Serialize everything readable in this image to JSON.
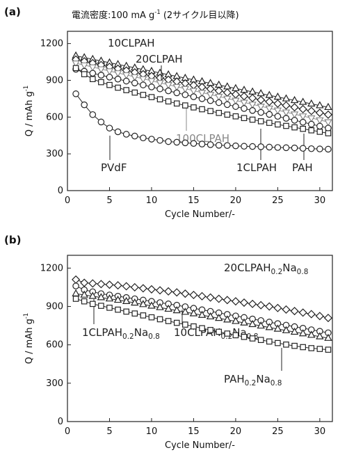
{
  "chart_data": [
    {
      "type": "line",
      "label": "(a)",
      "title": "電流密度:100 mA g-1 (2サイクル目以降)",
      "x_label": "Cycle Number/-",
      "y_label": "Q / mAh g-1",
      "xlim": [
        0,
        31.5
      ],
      "ylim": [
        0,
        1300
      ],
      "xticks": [
        0,
        5,
        10,
        15,
        20,
        25,
        30
      ],
      "yticks": [
        0,
        300,
        600,
        900,
        1200
      ],
      "x": [
        1,
        2,
        3,
        4,
        5,
        6,
        7,
        8,
        9,
        10,
        11,
        12,
        13,
        14,
        15,
        16,
        17,
        18,
        19,
        20,
        21,
        22,
        23,
        24,
        25,
        26,
        27,
        28,
        29,
        30,
        31
      ],
      "series": [
        {
          "name": "10CLPAH",
          "color": "#222222",
          "marker": "triangle",
          "values": [
            1100,
            1086,
            1072,
            1058,
            1044,
            1030,
            1016,
            1002,
            988,
            974,
            960,
            946,
            932,
            918,
            904,
            890,
            876,
            862,
            848,
            834,
            820,
            806,
            792,
            778,
            764,
            750,
            736,
            722,
            708,
            694,
            680
          ]
        },
        {
          "name": "20CLPAH",
          "color": "#222222",
          "marker": "diamond",
          "values": [
            1070,
            1055,
            1040,
            1025,
            1010,
            995,
            980,
            965,
            950,
            935,
            920,
            905,
            890,
            875,
            860,
            845,
            830,
            815,
            800,
            785,
            770,
            755,
            740,
            725,
            710,
            695,
            680,
            665,
            650,
            635,
            620
          ]
        },
        {
          "name": "100CLPAH",
          "color": "#888888",
          "marker": "triangle-down",
          "values": [
            1040,
            1024,
            1008,
            992,
            976,
            960,
            944,
            928,
            912,
            896,
            880,
            864,
            848,
            832,
            816,
            800,
            784,
            768,
            752,
            736,
            720,
            704,
            688,
            672,
            656,
            640,
            624,
            608,
            592,
            576,
            560
          ]
        },
        {
          "name": "1CLPAH",
          "color": "#222222",
          "marker": "circle",
          "values": [
            990,
            974,
            958,
            942,
            926,
            910,
            894,
            878,
            862,
            846,
            830,
            814,
            798,
            782,
            766,
            750,
            734,
            718,
            702,
            686,
            670,
            654,
            638,
            622,
            606,
            590,
            574,
            558,
            542,
            526,
            510
          ]
        },
        {
          "name": "PAH",
          "color": "#222222",
          "marker": "square",
          "values": [
            1000,
            950,
            910,
            885,
            862,
            840,
            820,
            800,
            781,
            763,
            745,
            728,
            711,
            695,
            679,
            664,
            649,
            634,
            620,
            606,
            592,
            579,
            566,
            553,
            540,
            528,
            516,
            504,
            492,
            480,
            468
          ]
        },
        {
          "name": "PVdF",
          "color": "#222222",
          "marker": "circle",
          "values": [
            790,
            700,
            620,
            560,
            510,
            480,
            460,
            445,
            430,
            420,
            410,
            400,
            395,
            390,
            385,
            380,
            375,
            370,
            368,
            365,
            362,
            360,
            358,
            355,
            352,
            350,
            348,
            345,
            342,
            340,
            338
          ]
        }
      ]
    },
    {
      "type": "line",
      "label": "(b)",
      "x_label": "Cycle Number/-",
      "y_label": "Q / mAh g-1",
      "xlim": [
        0,
        31.5
      ],
      "ylim": [
        0,
        1300
      ],
      "xticks": [
        0,
        5,
        10,
        15,
        20,
        25,
        30
      ],
      "yticks": [
        0,
        300,
        600,
        900,
        1200
      ],
      "x": [
        1,
        2,
        3,
        4,
        5,
        6,
        7,
        8,
        9,
        10,
        11,
        12,
        13,
        14,
        15,
        16,
        17,
        18,
        19,
        20,
        21,
        22,
        23,
        24,
        25,
        26,
        27,
        28,
        29,
        30,
        31
      ],
      "series": [
        {
          "name": "20CLPAH0.2Na0.8",
          "color": "#222222",
          "marker": "diamond",
          "values": [
            1110,
            1085,
            1080,
            1075,
            1070,
            1065,
            1058,
            1050,
            1042,
            1034,
            1026,
            1018,
            1010,
            1000,
            990,
            980,
            970,
            960,
            950,
            940,
            930,
            920,
            910,
            900,
            888,
            876,
            864,
            852,
            840,
            825,
            810
          ]
        },
        {
          "name": "10CLPAH0.2Na0.8",
          "color": "#222222",
          "marker": "circle",
          "values": [
            1060,
            1030,
            1015,
            1000,
            990,
            980,
            970,
            960,
            950,
            940,
            930,
            920,
            910,
            898,
            886,
            874,
            862,
            850,
            838,
            826,
            814,
            802,
            790,
            778,
            766,
            754,
            742,
            730,
            718,
            706,
            694
          ]
        },
        {
          "name": "1CLPAH0.2Na0.8",
          "color": "#222222",
          "marker": "triangle",
          "values": [
            1000,
            990,
            980,
            970,
            960,
            950,
            940,
            928,
            916,
            904,
            892,
            880,
            868,
            856,
            844,
            832,
            820,
            808,
            796,
            784,
            772,
            760,
            748,
            736,
            724,
            712,
            700,
            688,
            676,
            664,
            652
          ]
        },
        {
          "name": "PAH0.2Na0.8",
          "color": "#222222",
          "marker": "square",
          "values": [
            960,
            940,
            920,
            905,
            890,
            875,
            860,
            845,
            830,
            815,
            800,
            786,
            772,
            758,
            744,
            730,
            716,
            702,
            688,
            675,
            662,
            650,
            638,
            626,
            614,
            602,
            592,
            582,
            574,
            568,
            562
          ]
        }
      ]
    }
  ]
}
